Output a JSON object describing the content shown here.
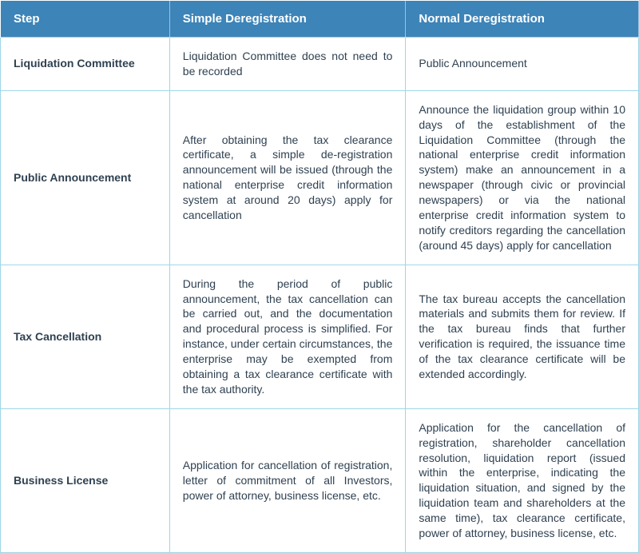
{
  "type": "table",
  "header_background": "#3d84b8",
  "header_text_color": "#ffffff",
  "header_fontsize": 15,
  "body_fontsize": 14,
  "body_text_color": "#2f4151",
  "cell_border_color": "#9ed7e6",
  "line_height": 1.35,
  "columns": [
    "Step",
    "Simple Deregistration",
    "Normal Deregistration"
  ],
  "rows": [
    {
      "step": "Liquidation Committee",
      "simple": "Liquidation Committee does not need to be recorded",
      "normal": "Public Announcement"
    },
    {
      "step": "Public Announcement",
      "simple": "After obtaining the tax clearance certificate, a simple de-registration announcement will be issued (through the national enterprise credit information system at around 20 days)  apply for cancellation",
      "normal": "Announce the liquidation group within 10 days of the establishment of the Liquidation Committee (through the national enterprise credit information system) make an announcement in a newspaper (through civic or provincial newspapers) or via the national enterprise credit information system to notify creditors regarding the cancellation (around 45 days) apply for cancellation"
    },
    {
      "step": "Tax Cancellation",
      "simple": "During the period of public announcement, the tax cancellation can be carried out, and the documentation and procedural process is simplified. For instance, under certain circumstances, the enterprise may be exempted from obtaining a tax clearance certificate with the tax authority.",
      "normal": "The tax bureau accepts the cancellation materials and submits them for review. If the tax bureau finds that further verification is required, the issuance time of the tax clearance certificate will be extended accordingly."
    },
    {
      "step": "Business License",
      "simple": "Application for cancellation of registration, letter of commitment of all Investors, power of attorney, business license, etc.",
      "normal": "Application for the cancellation of registration, shareholder cancellation resolution, liquidation report (issued within the enterprise, indicating the liquidation situation, and signed by the liquidation team and shareholders at the same time), tax clearance certificate, power of attorney, business license, etc."
    }
  ]
}
